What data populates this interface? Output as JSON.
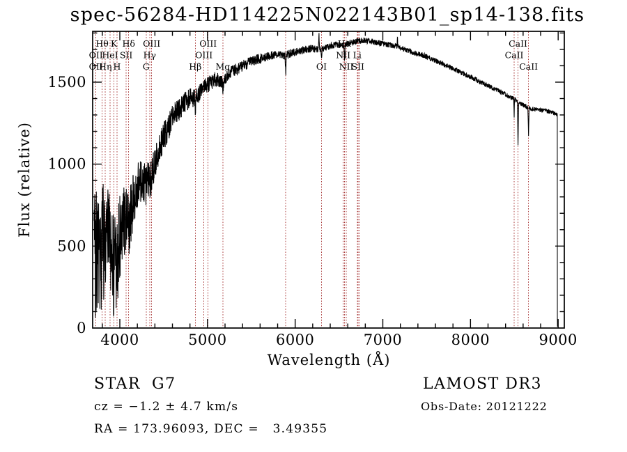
{
  "title": "spec-56284-HD114225N022143B01_sp14-138.fits",
  "annotations": {
    "object_class": "STAR",
    "subclass": "G7",
    "survey": "LAMOST DR3",
    "cz_line": "cz = −1.2 ± 4.7 km/s",
    "obs_date_line": "Obs-Date: 20121222",
    "radec_line": "RA = 173.96093, DEC =   3.49355"
  },
  "chart_data": {
    "type": "line",
    "title": "spec-56284-HD114225N022143B01_sp14-138.fits",
    "xlabel": "Wavelength (Å)",
    "ylabel": "Flux (relative)",
    "xlim": [
      3690,
      9070
    ],
    "ylim": [
      0,
      1810
    ],
    "x_ticks": [
      4000,
      5000,
      6000,
      7000,
      8000,
      9000
    ],
    "y_ticks": [
      0,
      500,
      1000,
      1500
    ],
    "x_minor_step": 200,
    "y_minor_step": 100,
    "grid": false,
    "legend": "none",
    "trace_color": "#000000",
    "marker_line_color": "#a83838",
    "spectral_lines": [
      {
        "wavelength": 3727,
        "label": "OII",
        "row": 2
      },
      {
        "wavelength": 3727,
        "label": "OII",
        "row": 3
      },
      {
        "wavelength": 3798,
        "label": "Hθ",
        "row": 1
      },
      {
        "wavelength": 3835,
        "label": "Hη",
        "row": 3
      },
      {
        "wavelength": 3889,
        "label": "HeI",
        "row": 2
      },
      {
        "wavelength": 3933,
        "label": "K",
        "row": 1
      },
      {
        "wavelength": 3968,
        "label": "H",
        "row": 3
      },
      {
        "wavelength": 4072,
        "label": "SII",
        "row": 2
      },
      {
        "wavelength": 4101,
        "label": "Hδ",
        "row": 1
      },
      {
        "wavelength": 4300,
        "label": "G",
        "row": 3
      },
      {
        "wavelength": 4340,
        "label": "Hγ",
        "row": 2
      },
      {
        "wavelength": 4363,
        "label": "OIII",
        "row": 1
      },
      {
        "wavelength": 4861,
        "label": "Hβ",
        "row": 3
      },
      {
        "wavelength": 4959,
        "label": "OIII",
        "row": 2
      },
      {
        "wavelength": 5007,
        "label": "OIII",
        "row": 1
      },
      {
        "wavelength": 5175,
        "label": "Mg",
        "row": 3
      },
      {
        "wavelength": 5893,
        "label": "",
        "row": 0
      },
      {
        "wavelength": 6300,
        "label": "OI",
        "row": 3
      },
      {
        "wavelength": 6548,
        "label": "NII",
        "row": 2
      },
      {
        "wavelength": 6563,
        "label": "Hα",
        "row": 1
      },
      {
        "wavelength": 6583,
        "label": "NII",
        "row": 3
      },
      {
        "wavelength": 6708,
        "label": "Li",
        "row": 2
      },
      {
        "wavelength": 6716,
        "label": "SII",
        "row": 3
      },
      {
        "wavelength": 6731,
        "label": "",
        "row": 0
      },
      {
        "wavelength": 8498,
        "label": "CaII",
        "row": 2
      },
      {
        "wavelength": 8542,
        "label": "CaII",
        "row": 1
      },
      {
        "wavelength": 8662,
        "label": "CaII",
        "row": 3
      }
    ],
    "continuum_anchors": [
      [
        3705,
        430
      ],
      [
        3720,
        470
      ],
      [
        3740,
        430
      ],
      [
        3760,
        500
      ],
      [
        3790,
        490
      ],
      [
        3810,
        520
      ],
      [
        3835,
        470
      ],
      [
        3860,
        510
      ],
      [
        3890,
        520
      ],
      [
        3910,
        540
      ],
      [
        3933,
        330
      ],
      [
        3950,
        420
      ],
      [
        3968,
        360
      ],
      [
        3985,
        500
      ],
      [
        4000,
        560
      ],
      [
        4030,
        620
      ],
      [
        4060,
        660
      ],
      [
        4085,
        650
      ],
      [
        4101,
        600
      ],
      [
        4120,
        680
      ],
      [
        4150,
        760
      ],
      [
        4200,
        850
      ],
      [
        4250,
        920
      ],
      [
        4285,
        890
      ],
      [
        4300,
        860
      ],
      [
        4320,
        900
      ],
      [
        4340,
        890
      ],
      [
        4363,
        930
      ],
      [
        4400,
        1010
      ],
      [
        4450,
        1090
      ],
      [
        4500,
        1170
      ],
      [
        4550,
        1220
      ],
      [
        4600,
        1280
      ],
      [
        4650,
        1320
      ],
      [
        4700,
        1350
      ],
      [
        4750,
        1380
      ],
      [
        4800,
        1400
      ],
      [
        4853,
        1400
      ],
      [
        4861,
        1330
      ],
      [
        4869,
        1405
      ],
      [
        4920,
        1440
      ],
      [
        4980,
        1475
      ],
      [
        5040,
        1500
      ],
      [
        5100,
        1520
      ],
      [
        5167,
        1500
      ],
      [
        5175,
        1455
      ],
      [
        5185,
        1500
      ],
      [
        5230,
        1545
      ],
      [
        5300,
        1570
      ],
      [
        5400,
        1600
      ],
      [
        5500,
        1625
      ],
      [
        5600,
        1645
      ],
      [
        5700,
        1660
      ],
      [
        5800,
        1670
      ],
      [
        5885,
        1660
      ],
      [
        5893,
        1550
      ],
      [
        5901,
        1665
      ],
      [
        5980,
        1680
      ],
      [
        6080,
        1695
      ],
      [
        6180,
        1705
      ],
      [
        6265,
        1700
      ],
      [
        6271,
        1805
      ],
      [
        6277,
        1700
      ],
      [
        6295,
        1700
      ],
      [
        6300,
        1640
      ],
      [
        6308,
        1700
      ],
      [
        6400,
        1720
      ],
      [
        6460,
        1730
      ],
      [
        6556,
        1725
      ],
      [
        6563,
        1635
      ],
      [
        6570,
        1730
      ],
      [
        6650,
        1740
      ],
      [
        6720,
        1750
      ],
      [
        6800,
        1755
      ],
      [
        6900,
        1745
      ],
      [
        7000,
        1735
      ],
      [
        7100,
        1725
      ],
      [
        7163,
        1720
      ],
      [
        7167,
        1805
      ],
      [
        7171,
        1715
      ],
      [
        7250,
        1700
      ],
      [
        7350,
        1680
      ],
      [
        7450,
        1665
      ],
      [
        7550,
        1645
      ],
      [
        7650,
        1620
      ],
      [
        7750,
        1595
      ],
      [
        7850,
        1570
      ],
      [
        7950,
        1545
      ],
      [
        8050,
        1520
      ],
      [
        8150,
        1490
      ],
      [
        8250,
        1465
      ],
      [
        8350,
        1440
      ],
      [
        8430,
        1415
      ],
      [
        8493,
        1400
      ],
      [
        8498,
        1290
      ],
      [
        8503,
        1395
      ],
      [
        8535,
        1385
      ],
      [
        8542,
        1105
      ],
      [
        8549,
        1380
      ],
      [
        8600,
        1360
      ],
      [
        8655,
        1345
      ],
      [
        8662,
        1170
      ],
      [
        8669,
        1340
      ],
      [
        8720,
        1335
      ],
      [
        8800,
        1330
      ],
      [
        8900,
        1320
      ],
      [
        8975,
        1310
      ],
      [
        8988,
        1300
      ],
      [
        8990,
        1300
      ],
      [
        8991,
        60
      ],
      [
        8992,
        8
      ]
    ],
    "noise_profile": [
      [
        3705,
        430
      ],
      [
        3770,
        390
      ],
      [
        3850,
        340
      ],
      [
        3940,
        310
      ],
      [
        3990,
        260
      ],
      [
        4050,
        215
      ],
      [
        4120,
        185
      ],
      [
        4200,
        150
      ],
      [
        4300,
        120
      ],
      [
        4400,
        100
      ],
      [
        4500,
        88
      ],
      [
        4650,
        72
      ],
      [
        4800,
        62
      ],
      [
        4950,
        52
      ],
      [
        5100,
        45
      ],
      [
        5300,
        38
      ],
      [
        5500,
        32
      ],
      [
        5800,
        27
      ],
      [
        6200,
        22
      ],
      [
        6600,
        19
      ],
      [
        7200,
        17
      ],
      [
        8000,
        15
      ],
      [
        8600,
        14
      ],
      [
        8990,
        13
      ]
    ],
    "noise_seed": 56284,
    "sample_step": 2
  }
}
